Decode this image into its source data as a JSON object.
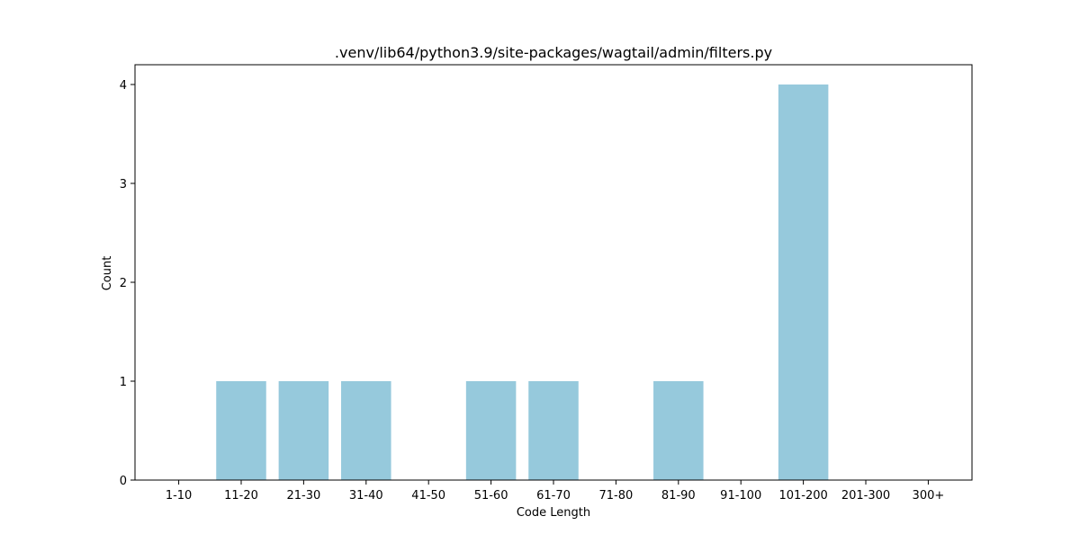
{
  "chart_data": {
    "type": "bar",
    "title": ".venv/lib64/python3.9/site-packages/wagtail/admin/filters.py",
    "xlabel": "Code Length",
    "ylabel": "Count",
    "categories": [
      "1-10",
      "11-20",
      "21-30",
      "31-40",
      "41-50",
      "51-60",
      "61-70",
      "71-80",
      "81-90",
      "91-100",
      "101-200",
      "201-300",
      "300+"
    ],
    "values": [
      0,
      1,
      1,
      1,
      0,
      1,
      1,
      0,
      1,
      0,
      4,
      0,
      0
    ],
    "ylim": [
      0,
      4.2
    ],
    "yticks": [
      0,
      1,
      2,
      3,
      4
    ],
    "grid": false,
    "bar_color": "#96c9dc"
  }
}
